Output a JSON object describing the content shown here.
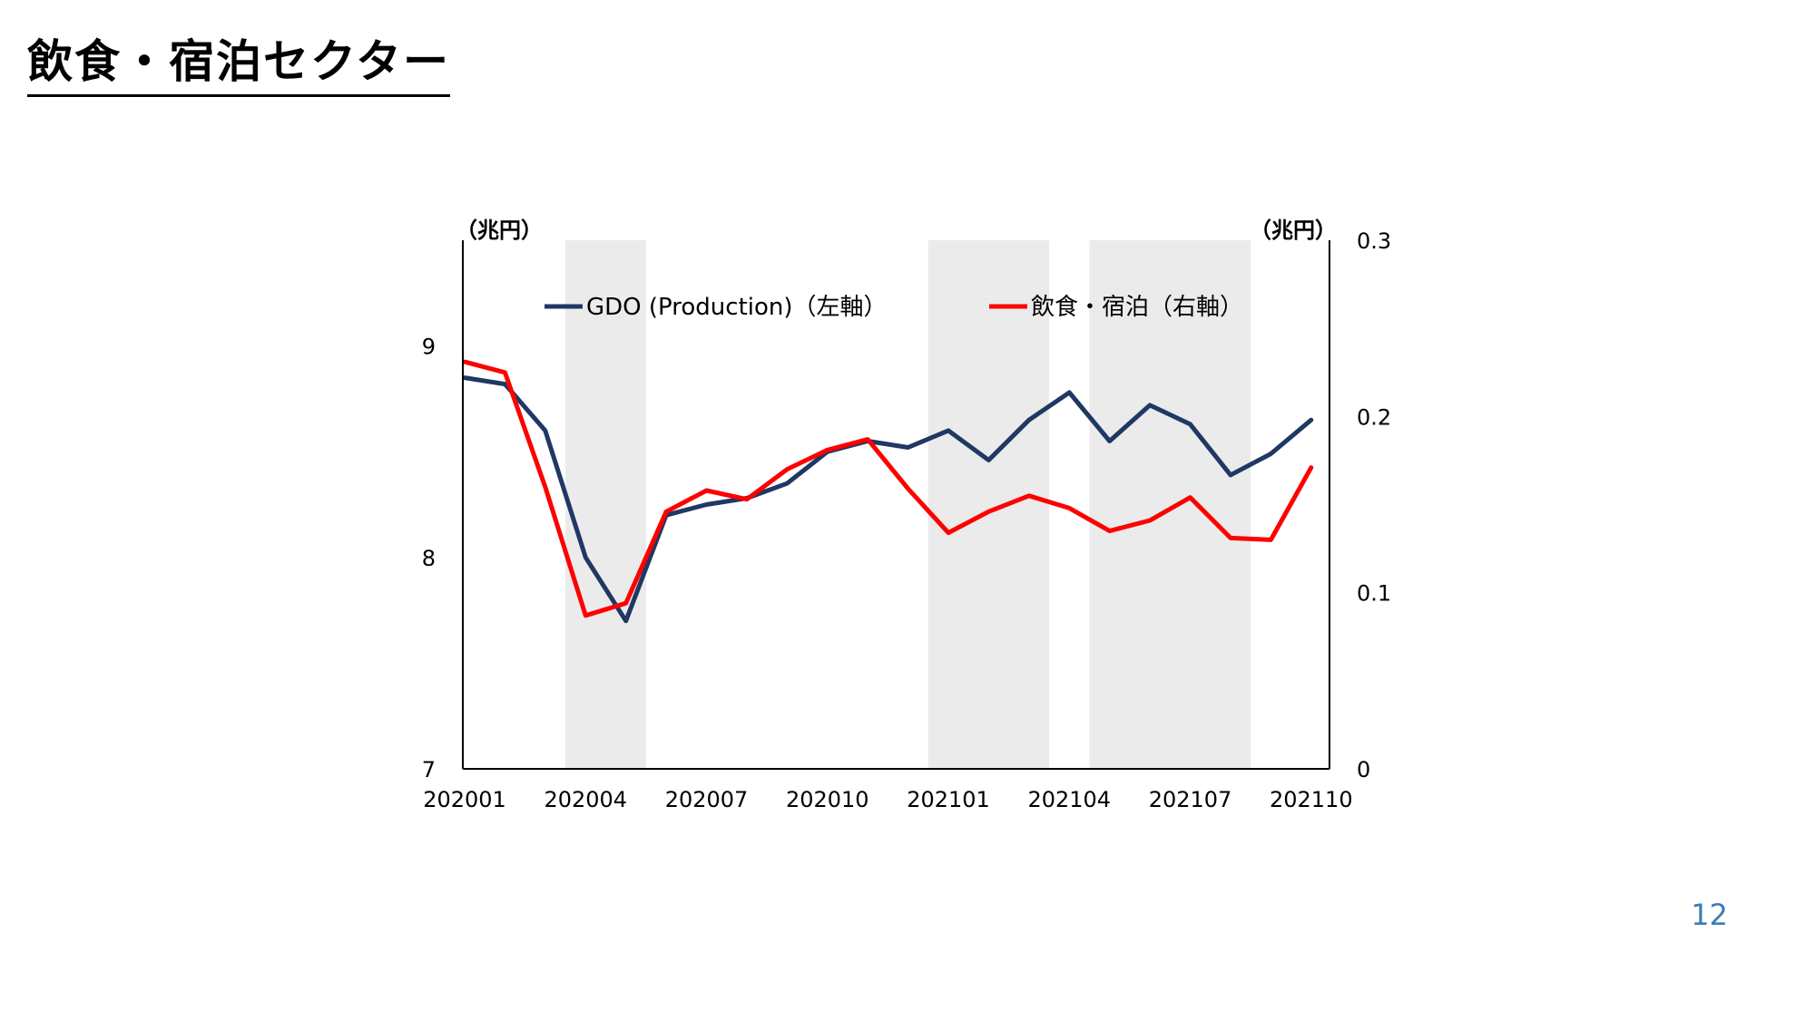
{
  "slide": {
    "title": "飲食・宿泊セクター",
    "page_number": "12"
  },
  "colors": {
    "gdo": "#1f3864",
    "food": "#ff0000",
    "shade": "#ebebeb",
    "axis": "#000000"
  },
  "chart_data": {
    "type": "line",
    "x": [
      "202001",
      "202002",
      "202003",
      "202004",
      "202005",
      "202006",
      "202007",
      "202008",
      "202009",
      "202010",
      "202011",
      "202012",
      "202101",
      "202102",
      "202103",
      "202104",
      "202105",
      "202106",
      "202107",
      "202108",
      "202109",
      "202110"
    ],
    "x_tick_labels": [
      "202001",
      "202004",
      "202007",
      "202010",
      "202101",
      "202104",
      "202107",
      "202110"
    ],
    "series": [
      {
        "name": "GDO (Production)（左軸）",
        "axis": "left",
        "color": "#1f3864",
        "values": [
          8.85,
          8.82,
          8.6,
          8.0,
          7.7,
          8.2,
          8.25,
          8.28,
          8.35,
          8.5,
          8.55,
          8.52,
          8.6,
          8.46,
          8.65,
          8.78,
          8.55,
          8.72,
          8.63,
          8.39,
          8.49,
          8.65
        ]
      },
      {
        "name": "飲食・宿泊（右軸）",
        "axis": "right",
        "color": "#ff0000",
        "values": [
          0.231,
          0.225,
          0.16,
          0.087,
          0.094,
          0.146,
          0.158,
          0.153,
          0.17,
          0.181,
          0.187,
          0.159,
          0.134,
          0.146,
          0.155,
          0.148,
          0.135,
          0.141,
          0.154,
          0.131,
          0.13,
          0.171
        ]
      }
    ],
    "left_axis": {
      "unit": "（兆円）",
      "ylim": [
        7,
        9.5
      ],
      "ticks": [
        7,
        8,
        9
      ]
    },
    "right_axis": {
      "unit": "（兆円）",
      "ylim": [
        0,
        0.3
      ],
      "ticks": [
        0,
        0.1,
        0.2,
        0.3
      ]
    },
    "shaded_periods": [
      {
        "start": "202003.5",
        "end": "202005.5"
      },
      {
        "start": "202012.5",
        "end": "202103.5"
      },
      {
        "start": "202104.5",
        "end": "202108.5"
      }
    ],
    "legend_placement": "top",
    "grid": false
  }
}
